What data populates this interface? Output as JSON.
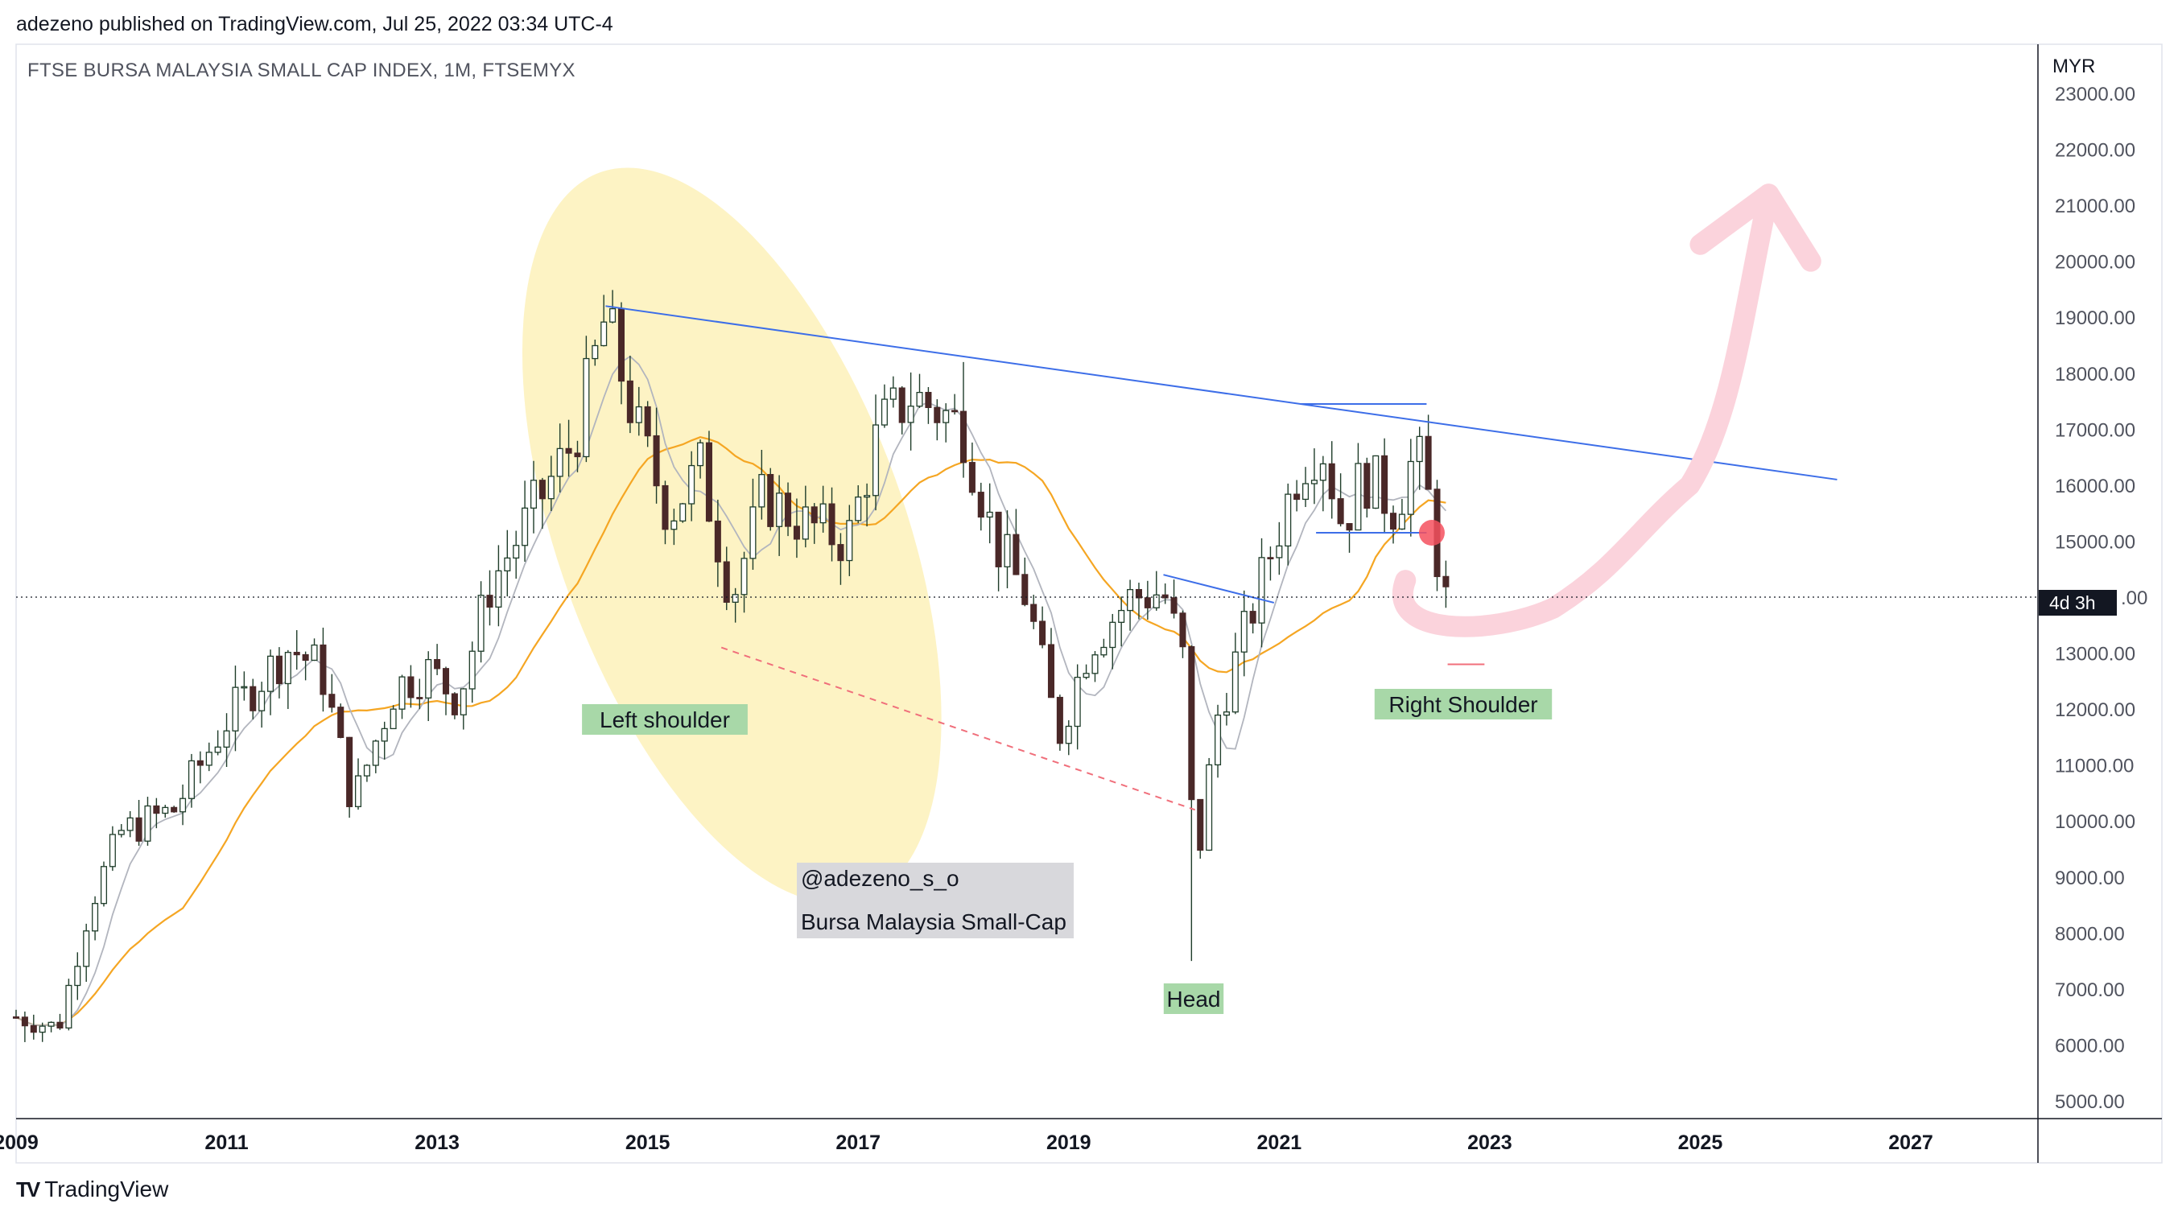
{
  "header": {
    "published": "adezeno published on TradingView.com, Jul 25, 2022 03:34 UTC-4"
  },
  "chart_title": "FTSE BURSA MALAYSIA SMALL CAP INDEX, 1M, FTSEMYX",
  "currency": "MYR",
  "countdown": "4d 3h",
  "footer": {
    "logo": "TV",
    "brand": "TradingView"
  },
  "colors": {
    "up": "#ffffff",
    "down": "#4a2828",
    "candle_outline": "#1f3d2a",
    "ma_fast": "#b2b5be",
    "ma_slow": "#f5a623",
    "trendline": "#3d6ee8",
    "support": "#f06f7b",
    "arrow": "#fbd3dc",
    "ellipse": "#fdf3c4",
    "label_bg": "#a8d8a8",
    "note_bg": "#d8d8dc"
  },
  "annotations": {
    "left_shoulder": "Left shoulder",
    "head": "Head",
    "right_shoulder": "Right Shoulder",
    "note_line1": "@adezeno_s_o",
    "note_line2": "Bursa Malaysia Small-Cap"
  },
  "chart_data": {
    "type": "candlestick",
    "title": "FTSE BURSA MALAYSIA SMALL CAP INDEX, 1M, FTSEMYX",
    "ylabel": "MYR",
    "ylim": [
      4700,
      23400
    ],
    "xlim": [
      2009.0,
      2029.0
    ],
    "y_ticks": [
      "5000.00",
      "6000.00",
      "7000.00",
      "8000.00",
      "9000.00",
      "10000.00",
      "11000.00",
      "12000.00",
      "13000.00",
      "14000.00",
      "15000.00",
      "16000.00",
      "17000.00",
      "18000.00",
      "19000.00",
      "20000.00",
      "21000.00",
      "22000.00",
      "23000.00"
    ],
    "x_ticks": [
      "2009",
      "2011",
      "2013",
      "2015",
      "2017",
      "2019",
      "2021",
      "2023",
      "2025",
      "2027"
    ],
    "current_price": 14000,
    "close_path": [
      [
        2009.0,
        6500
      ],
      [
        2009.4,
        6300
      ],
      [
        2009.7,
        8500
      ],
      [
        2010.0,
        9800
      ],
      [
        2010.5,
        10200
      ],
      [
        2011.0,
        11800
      ],
      [
        2011.3,
        12500
      ],
      [
        2011.6,
        13100
      ],
      [
        2011.9,
        12700
      ],
      [
        2012.2,
        10300
      ],
      [
        2012.6,
        12400
      ],
      [
        2012.9,
        12700
      ],
      [
        2013.2,
        12200
      ],
      [
        2013.5,
        14200
      ],
      [
        2013.9,
        15500
      ],
      [
        2014.3,
        16800
      ],
      [
        2014.6,
        19000
      ],
      [
        2014.9,
        17000
      ],
      [
        2015.2,
        15500
      ],
      [
        2015.5,
        16300
      ],
      [
        2015.8,
        14000
      ],
      [
        2016.1,
        15800
      ],
      [
        2016.5,
        15300
      ],
      [
        2016.9,
        15000
      ],
      [
        2017.2,
        17000
      ],
      [
        2017.5,
        17600
      ],
      [
        2017.8,
        17300
      ],
      [
        2018.0,
        17000
      ],
      [
        2018.3,
        15000
      ],
      [
        2018.6,
        14000
      ],
      [
        2018.9,
        11500
      ],
      [
        2019.2,
        13200
      ],
      [
        2019.6,
        14000
      ],
      [
        2019.9,
        14100
      ],
      [
        2020.1,
        12800
      ],
      [
        2020.2,
        8900
      ],
      [
        2020.4,
        11800
      ],
      [
        2020.7,
        13500
      ],
      [
        2020.9,
        14700
      ],
      [
        2021.2,
        16400
      ],
      [
        2021.4,
        16800
      ],
      [
        2021.6,
        15300
      ],
      [
        2021.8,
        16200
      ],
      [
        2022.1,
        15600
      ],
      [
        2022.3,
        16600
      ],
      [
        2022.45,
        15500
      ],
      [
        2022.55,
        14000
      ],
      [
        2022.6,
        13900
      ]
    ],
    "trendlines": [
      {
        "from": [
          2014.6,
          19200
        ],
        "to": [
          2026.3,
          16100
        ],
        "style": "solid"
      },
      {
        "from": [
          2015.7,
          13100
        ],
        "to": [
          2020.2,
          10200
        ],
        "style": "dashed"
      },
      {
        "from": [
          2019.9,
          14400
        ],
        "to": [
          2020.95,
          13900
        ],
        "style": "solid"
      },
      {
        "from": [
          2021.2,
          17450
        ],
        "to": [
          2022.4,
          17450
        ],
        "style": "solid"
      },
      {
        "from": [
          2021.35,
          15150
        ],
        "to": [
          2022.4,
          15150
        ],
        "style": "solid"
      }
    ]
  }
}
